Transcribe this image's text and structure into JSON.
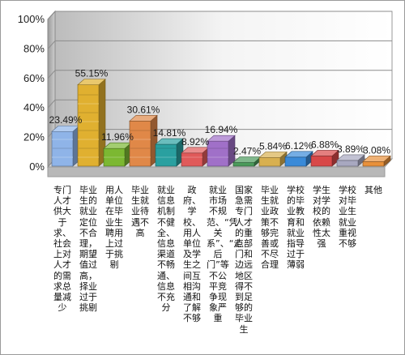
{
  "chart_data": {
    "type": "bar",
    "categories": [
      "专门人才供大于求、社会上对人才的需求总量减少",
      "毕业生的就业定位不合理，期望值过高，择业过于挑剔",
      "用人单位在毕业生聘用上过于挑剔",
      "毕业生就业待遇不高",
      "就业信息机制不健全、信息渠道不畅通、信息不充分",
      "政府、学校、用人单位及学生之间互相沟通和了解不够",
      "就业市场不规范、“凭关系”、“走后门”等不公平竞争现象严重",
      "国家急需专门人才的重点部门和边远地区得不到足够的毕业生",
      "毕业生就业政策不够完善或不尽合理",
      "学校的毕业教育和就业指导过于薄弱",
      "学生对学校的依赖性太强",
      "学校对毕业生就业重视不够",
      "其他"
    ],
    "values": [
      23.49,
      55.15,
      11.96,
      30.61,
      14.81,
      8.92,
      16.94,
      2.47,
      5.84,
      6.12,
      6.88,
      3.89,
      3.08
    ],
    "data_labels": [
      "23.49%",
      "55.15%",
      "11.96%",
      "30.61%",
      "14.81%",
      "8.92%",
      "16.94%",
      "2.47%",
      "5.84%",
      "6.12%",
      "6.88%",
      "3.89%",
      "3.08%"
    ],
    "y_ticks": [
      "0%",
      "20%",
      "40%",
      "60%",
      "80%",
      "100%"
    ],
    "ylim": [
      0,
      100
    ],
    "grid": true,
    "legend": "none",
    "colors": [
      "#8fb4e8",
      "#e0b030",
      "#7cb832",
      "#e08848",
      "#2aa0a0",
      "#e05a5a",
      "#a070c8",
      "#4a9a5a",
      "#d8b050",
      "#3a8ad8",
      "#d84848",
      "#a8a8c0",
      "#e8903a"
    ]
  }
}
